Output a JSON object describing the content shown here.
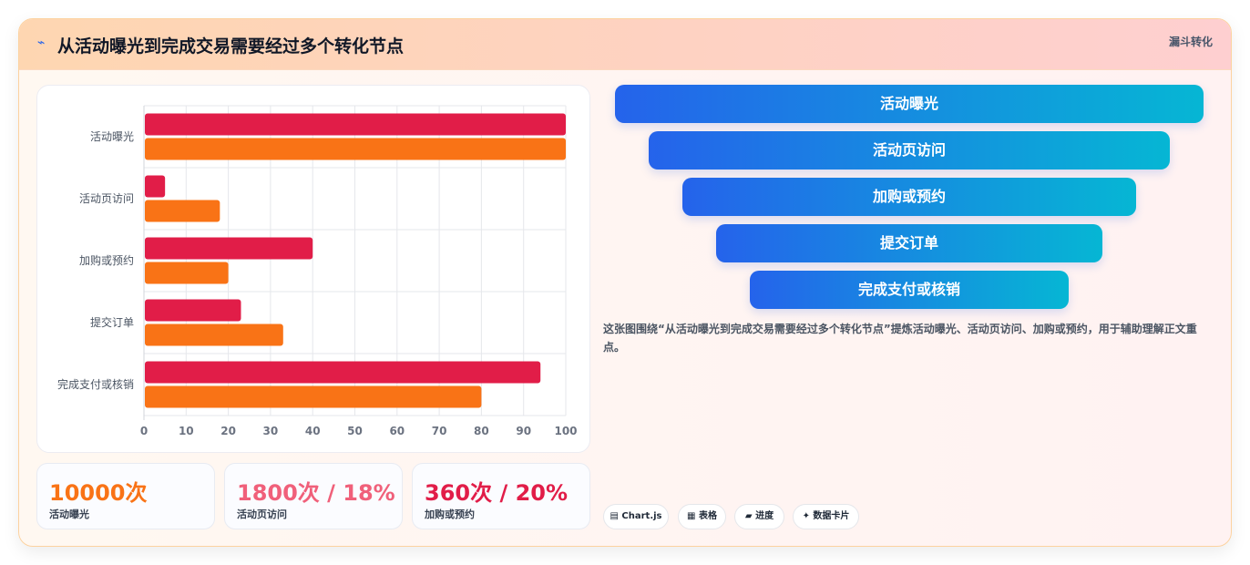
{
  "header": {
    "icon": "⌁",
    "icon_name": "bolt-icon",
    "title": "从活动曝光到完成交易需要经过多个转化节点",
    "tag": "漏斗转化"
  },
  "chart_data": {
    "type": "bar",
    "orientation": "horizontal",
    "categories": [
      "活动曝光",
      "活动页访问",
      "加购或预约",
      "提交订单",
      "完成支付或核销"
    ],
    "series": [
      {
        "values": [
          100,
          5,
          40,
          23,
          94
        ],
        "color": "#e11d48"
      },
      {
        "values": [
          100,
          18,
          20,
          33,
          80
        ],
        "color": "#f97316"
      }
    ],
    "xlim": [
      0,
      100
    ],
    "xticks": [
      0,
      10,
      20,
      30,
      40,
      50,
      60,
      70,
      80,
      90,
      100
    ],
    "grid": true,
    "legend": "none"
  },
  "stats": [
    {
      "value": "10000次",
      "label": "活动曝光",
      "color": "#f97316"
    },
    {
      "value": "1800次 / 18%",
      "label": "活动页访问",
      "color": "#f0607a"
    },
    {
      "value": "360次 / 20%",
      "label": "加购或预约",
      "color": "#e11d48"
    }
  ],
  "funnel": {
    "steps": [
      "活动曝光",
      "活动页访问",
      "加购或预约",
      "提交订单",
      "完成支付或核销"
    ]
  },
  "description": "这张图围绕“从活动曝光到完成交易需要经过多个转化节点”提炼活动曝光、活动页访问、加购或预约，用于辅助理解正文重点。",
  "chips": [
    {
      "label": "▤ Chart.js",
      "icon": "chart-icon"
    },
    {
      "label": "▦ 表格",
      "icon": "table-icon"
    },
    {
      "label": "▰ 进度",
      "icon": "progress-icon"
    },
    {
      "label": "✦ 数据卡片",
      "icon": "sparkle-icon"
    }
  ]
}
